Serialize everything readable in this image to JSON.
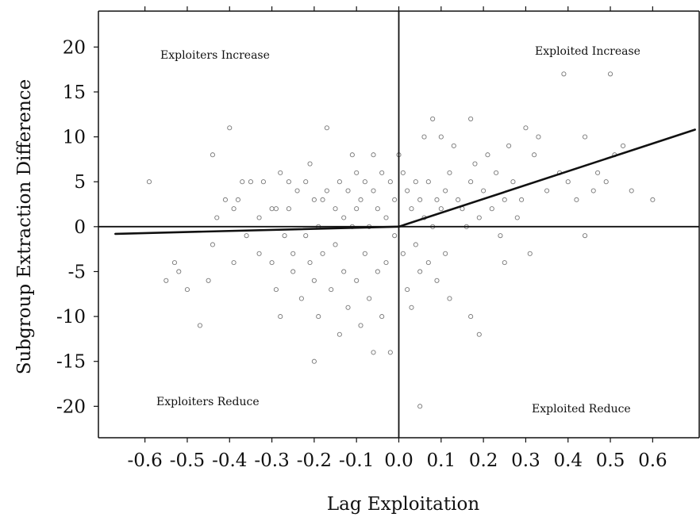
{
  "chart_data": {
    "type": "scatter",
    "xlabel": "Lag Exploitation",
    "ylabel": "Subgroup Extraction Difference",
    "xlim": [
      -0.71,
      0.71
    ],
    "ylim": [
      -23.5,
      24
    ],
    "x_ticks": [
      -0.6,
      -0.5,
      -0.4,
      -0.3,
      -0.2,
      -0.1,
      0.0,
      0.1,
      0.2,
      0.3,
      0.4,
      0.5,
      0.6
    ],
    "x_tick_labels": [
      "-0.6",
      "-0.5",
      "-0.4",
      "-0.3",
      "-0.2",
      "-0.1",
      "0.0",
      "0.1",
      "0.2",
      "0.3",
      "0.4",
      "0.5",
      "0.6"
    ],
    "y_ticks": [
      -20,
      -15,
      -10,
      -5,
      0,
      5,
      10,
      15,
      20
    ],
    "y_tick_labels": [
      "-20",
      "-15",
      "-10",
      "-5",
      "0",
      "5",
      "10",
      "15",
      "20"
    ],
    "grid": false,
    "reference_lines": {
      "x": 0,
      "y": 0
    },
    "quadrant_labels": {
      "top_left": "Exploiters Increase",
      "top_right": "Exploited Increase",
      "bottom_left": "Exploiters Reduce",
      "bottom_right": "Exploited Reduce"
    },
    "fit_line": {
      "left": [
        [
          -0.67,
          -0.8
        ],
        [
          0.0,
          0.0
        ]
      ],
      "right": [
        [
          0.0,
          0.0
        ],
        [
          0.7,
          10.8
        ]
      ]
    },
    "points": [
      [
        -0.59,
        5
      ],
      [
        -0.53,
        -4
      ],
      [
        -0.52,
        -5
      ],
      [
        -0.55,
        -6
      ],
      [
        -0.5,
        -7
      ],
      [
        -0.47,
        -11
      ],
      [
        -0.45,
        -6
      ],
      [
        -0.44,
        8
      ],
      [
        -0.44,
        -2
      ],
      [
        -0.43,
        1
      ],
      [
        -0.41,
        3
      ],
      [
        -0.4,
        11
      ],
      [
        -0.39,
        2
      ],
      [
        -0.39,
        -4
      ],
      [
        -0.38,
        3
      ],
      [
        -0.37,
        5
      ],
      [
        -0.36,
        -1
      ],
      [
        -0.35,
        5
      ],
      [
        -0.33,
        1
      ],
      [
        -0.33,
        -3
      ],
      [
        -0.32,
        5
      ],
      [
        -0.3,
        2
      ],
      [
        -0.3,
        -4
      ],
      [
        -0.29,
        2
      ],
      [
        -0.29,
        -7
      ],
      [
        -0.28,
        6
      ],
      [
        -0.28,
        -10
      ],
      [
        -0.27,
        -1
      ],
      [
        -0.26,
        5
      ],
      [
        -0.26,
        2
      ],
      [
        -0.25,
        -3
      ],
      [
        -0.25,
        -5
      ],
      [
        -0.24,
        4
      ],
      [
        -0.23,
        -8
      ],
      [
        -0.22,
        5
      ],
      [
        -0.22,
        -1
      ],
      [
        -0.21,
        7
      ],
      [
        -0.21,
        -4
      ],
      [
        -0.2,
        3
      ],
      [
        -0.2,
        -6
      ],
      [
        -0.2,
        -15
      ],
      [
        -0.19,
        0
      ],
      [
        -0.19,
        -10
      ],
      [
        -0.18,
        3
      ],
      [
        -0.18,
        -3
      ],
      [
        -0.17,
        11
      ],
      [
        -0.17,
        4
      ],
      [
        -0.16,
        -7
      ],
      [
        -0.15,
        2
      ],
      [
        -0.15,
        -2
      ],
      [
        -0.14,
        5
      ],
      [
        -0.14,
        -12
      ],
      [
        -0.13,
        1
      ],
      [
        -0.13,
        -5
      ],
      [
        -0.12,
        4
      ],
      [
        -0.12,
        -9
      ],
      [
        -0.11,
        8
      ],
      [
        -0.11,
        0
      ],
      [
        -0.1,
        6
      ],
      [
        -0.1,
        2
      ],
      [
        -0.1,
        -6
      ],
      [
        -0.09,
        3
      ],
      [
        -0.09,
        -11
      ],
      [
        -0.08,
        5
      ],
      [
        -0.08,
        -3
      ],
      [
        -0.07,
        0
      ],
      [
        -0.07,
        -8
      ],
      [
        -0.06,
        8
      ],
      [
        -0.06,
        4
      ],
      [
        -0.06,
        -14
      ],
      [
        -0.05,
        2
      ],
      [
        -0.05,
        -5
      ],
      [
        -0.04,
        6
      ],
      [
        -0.04,
        -10
      ],
      [
        -0.03,
        1
      ],
      [
        -0.03,
        -4
      ],
      [
        -0.02,
        5
      ],
      [
        -0.02,
        -14
      ],
      [
        -0.01,
        3
      ],
      [
        -0.01,
        -1
      ],
      [
        0.0,
        8
      ],
      [
        0.01,
        6
      ],
      [
        0.01,
        -3
      ],
      [
        0.02,
        4
      ],
      [
        0.02,
        -7
      ],
      [
        0.03,
        2
      ],
      [
        0.03,
        -9
      ],
      [
        0.04,
        5
      ],
      [
        0.04,
        -2
      ],
      [
        0.05,
        3
      ],
      [
        0.05,
        -5
      ],
      [
        0.05,
        -20
      ],
      [
        0.06,
        10
      ],
      [
        0.06,
        1
      ],
      [
        0.07,
        5
      ],
      [
        0.07,
        -4
      ],
      [
        0.08,
        12
      ],
      [
        0.08,
        0
      ],
      [
        0.09,
        3
      ],
      [
        0.09,
        -6
      ],
      [
        0.1,
        10
      ],
      [
        0.1,
        2
      ],
      [
        0.11,
        4
      ],
      [
        0.11,
        -3
      ],
      [
        0.12,
        6
      ],
      [
        0.12,
        -8
      ],
      [
        0.13,
        9
      ],
      [
        0.14,
        3
      ],
      [
        0.15,
        2
      ],
      [
        0.16,
        0
      ],
      [
        0.17,
        12
      ],
      [
        0.17,
        5
      ],
      [
        0.17,
        -10
      ],
      [
        0.18,
        7
      ],
      [
        0.19,
        1
      ],
      [
        0.19,
        -12
      ],
      [
        0.2,
        4
      ],
      [
        0.21,
        8
      ],
      [
        0.22,
        2
      ],
      [
        0.23,
        6
      ],
      [
        0.24,
        -1
      ],
      [
        0.25,
        3
      ],
      [
        0.25,
        -4
      ],
      [
        0.26,
        9
      ],
      [
        0.27,
        5
      ],
      [
        0.28,
        1
      ],
      [
        0.29,
        3
      ],
      [
        0.3,
        11
      ],
      [
        0.31,
        -3
      ],
      [
        0.32,
        8
      ],
      [
        0.33,
        10
      ],
      [
        0.35,
        4
      ],
      [
        0.38,
        6
      ],
      [
        0.39,
        17
      ],
      [
        0.4,
        5
      ],
      [
        0.42,
        3
      ],
      [
        0.44,
        10
      ],
      [
        0.44,
        -1
      ],
      [
        0.46,
        4
      ],
      [
        0.47,
        6
      ],
      [
        0.49,
        5
      ],
      [
        0.5,
        17
      ],
      [
        0.51,
        8
      ],
      [
        0.53,
        9
      ],
      [
        0.55,
        4
      ],
      [
        0.6,
        3
      ]
    ]
  }
}
